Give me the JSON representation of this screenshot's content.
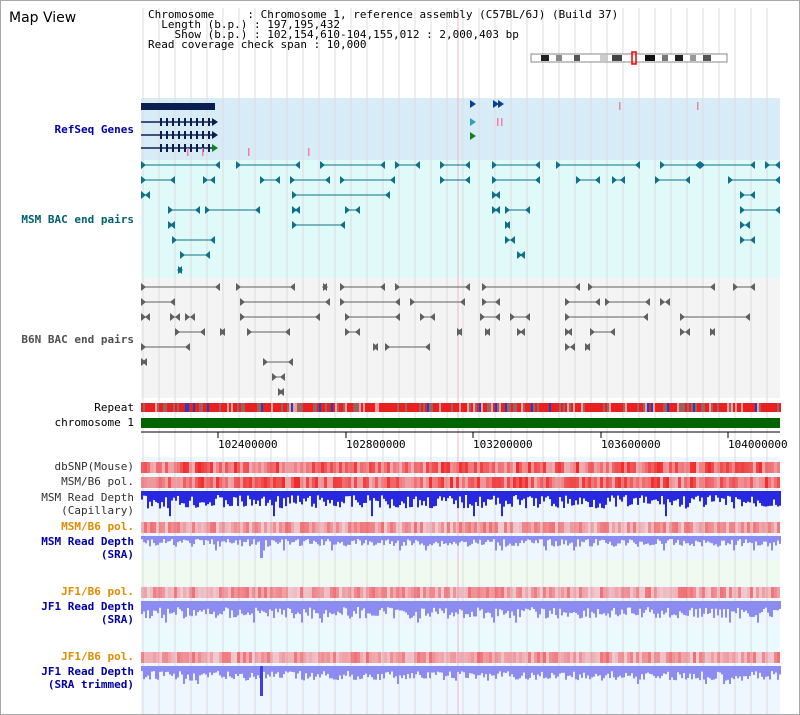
{
  "header": {
    "title": "Map View",
    "info_lines": [
      "Chromosome     : Chromosome 1, reference assembly (C57BL/6J) (Build 37)",
      "  Length (b.p.) : 197,195,432",
      "    Show (b.p.) : 102,154,610-104,155,012 : 2,000,403 bp",
      "Read coverage check span : 10,000"
    ]
  },
  "tracks": {
    "refseq": "RefSeq Genes",
    "msm_bac": "MSM BAC end pairs",
    "b6n_bac": "B6N BAC end pairs",
    "repeat": "Repeat",
    "chromosome": "chromosome 1",
    "dbsnp": "dbSNP(Mouse)",
    "msm_b6_pol": "MSM/B6 pol.",
    "msm_rd_cap_1": "MSM Read Depth",
    "msm_rd_cap_2": "(Capillary)",
    "msm_b6_pol_2": "MSM/B6 pol.",
    "msm_rd_sra_1": "MSM Read Depth",
    "msm_rd_sra_2": "(SRA)",
    "jf1_b6_pol": "JF1/B6 pol.",
    "jf1_rd_sra_1": "JF1 Read Depth",
    "jf1_rd_sra_2": "(SRA)",
    "jf1_b6_pol_2": "JF1/B6 pol.",
    "jf1_rd_trim_1": "JF1 Read Depth",
    "jf1_rd_trim_2": "(SRA trimmed)"
  },
  "ruler": {
    "ticks": [
      "102400000",
      "102800000",
      "103200000",
      "103600000",
      "104000000"
    ]
  },
  "colors": {
    "refseq_bg": "#d8ecf8",
    "msm_bac_bg": "#e0fafa",
    "b6n_bac_bg": "#f4f4f4",
    "chromosome": "#006400",
    "depth_blue": "#2828e0",
    "depth_light": "#8c8cf0",
    "polymorphism": "#ff5050"
  }
}
